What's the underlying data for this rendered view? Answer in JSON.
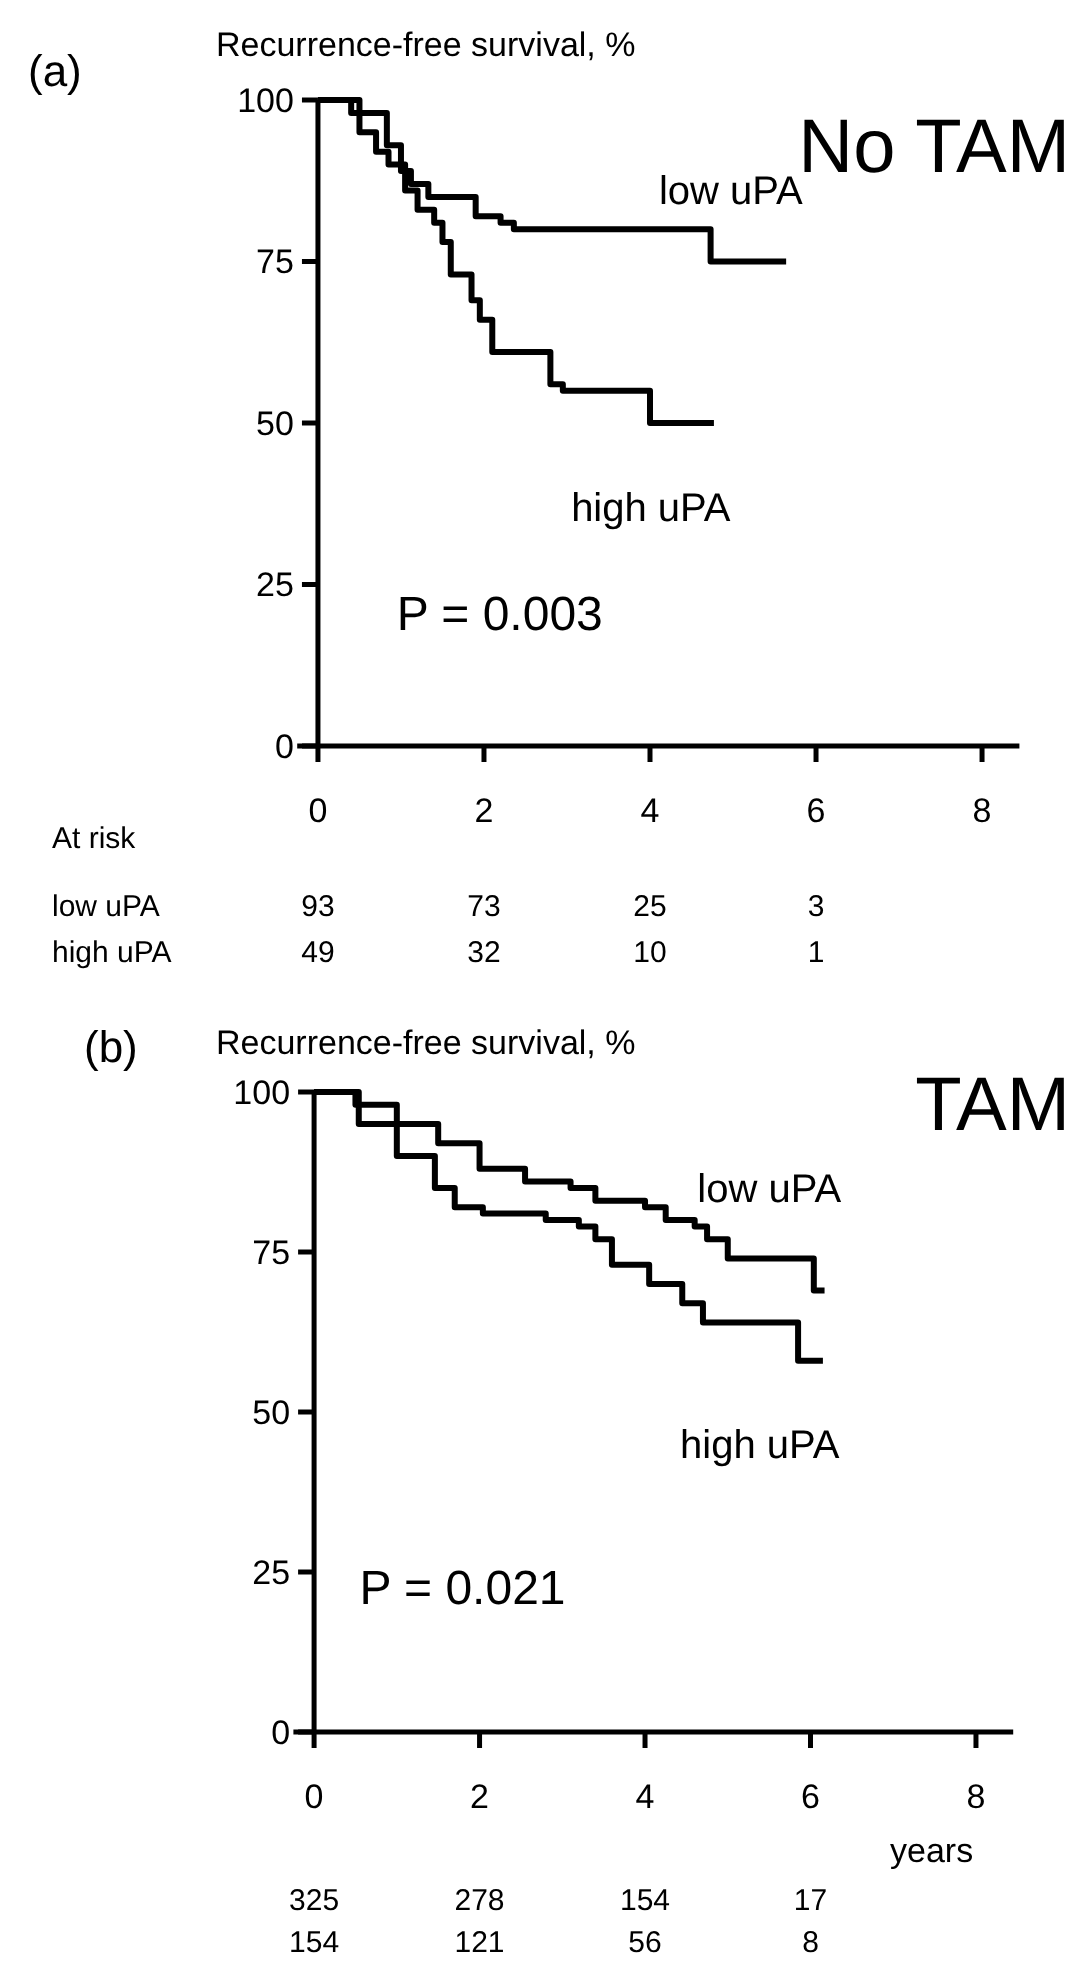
{
  "chart_data": [
    {
      "type": "step",
      "ylabel": "Recurrence-free survival, %",
      "xlim": [
        -0.25,
        8.45
      ],
      "ylim": [
        0,
        100
      ],
      "xticks": [
        0,
        2,
        4,
        6,
        8
      ],
      "yticks": [
        0,
        25,
        50,
        75,
        100
      ],
      "series": [
        {
          "name": "low uPA",
          "color": "#000000",
          "x": [
            0,
            0.4,
            0.83,
            1.0,
            1.12,
            1.33,
            1.9,
            2.2,
            2.36,
            4.73,
            5.64
          ],
          "values": [
            100,
            98,
            93,
            89,
            87,
            85,
            82,
            81,
            80,
            75,
            75
          ]
        },
        {
          "name": "high uPA",
          "color": "#000000",
          "x": [
            0,
            0.5,
            0.7,
            0.85,
            1.05,
            1.2,
            1.4,
            1.5,
            1.6,
            1.85,
            1.95,
            2.1,
            2.8,
            2.95,
            4.0,
            4.77
          ],
          "values": [
            100,
            95,
            92,
            90,
            86,
            83,
            81,
            78,
            73,
            69,
            66,
            61,
            56,
            55,
            50,
            50
          ]
        }
      ],
      "annotations": [
        "(a)",
        "No TAM",
        "P = 0.003",
        "At risk",
        "low uPA",
        "high uPA",
        "93",
        "73",
        "25",
        "3",
        "49",
        "32",
        "10",
        "1"
      ]
    },
    {
      "type": "step",
      "ylabel": "Recurrence-free survival, %",
      "xlabel": "years",
      "xlim": [
        -0.25,
        8.45
      ],
      "ylim": [
        0,
        100
      ],
      "xticks": [
        0,
        2,
        4,
        6,
        8
      ],
      "yticks": [
        0,
        25,
        50,
        75,
        100
      ],
      "series": [
        {
          "name": "low uPA",
          "color": "#000000",
          "x": [
            0,
            0.5,
            1.0,
            1.5,
            2.0,
            2.55,
            3.1,
            3.4,
            4.0,
            4.25,
            4.6,
            4.75,
            5.0,
            6.04,
            6.17
          ],
          "values": [
            100,
            98,
            95,
            92,
            88,
            86,
            85,
            83,
            82,
            80,
            79,
            77,
            74,
            69,
            69
          ]
        },
        {
          "name": "high uPA",
          "color": "#000000",
          "x": [
            0,
            0.54,
            1.0,
            1.46,
            1.7,
            2.04,
            2.8,
            3.2,
            3.4,
            3.6,
            4.05,
            4.45,
            4.7,
            5.85,
            6.15
          ],
          "values": [
            100,
            95,
            90,
            85,
            82,
            81,
            80,
            79,
            77,
            73,
            70,
            67,
            64,
            58,
            58
          ]
        }
      ],
      "annotations": [
        "(b)",
        "TAM",
        "P = 0.021",
        "325",
        "278",
        "154",
        "17",
        "154",
        "121",
        "56",
        "8"
      ]
    }
  ]
}
